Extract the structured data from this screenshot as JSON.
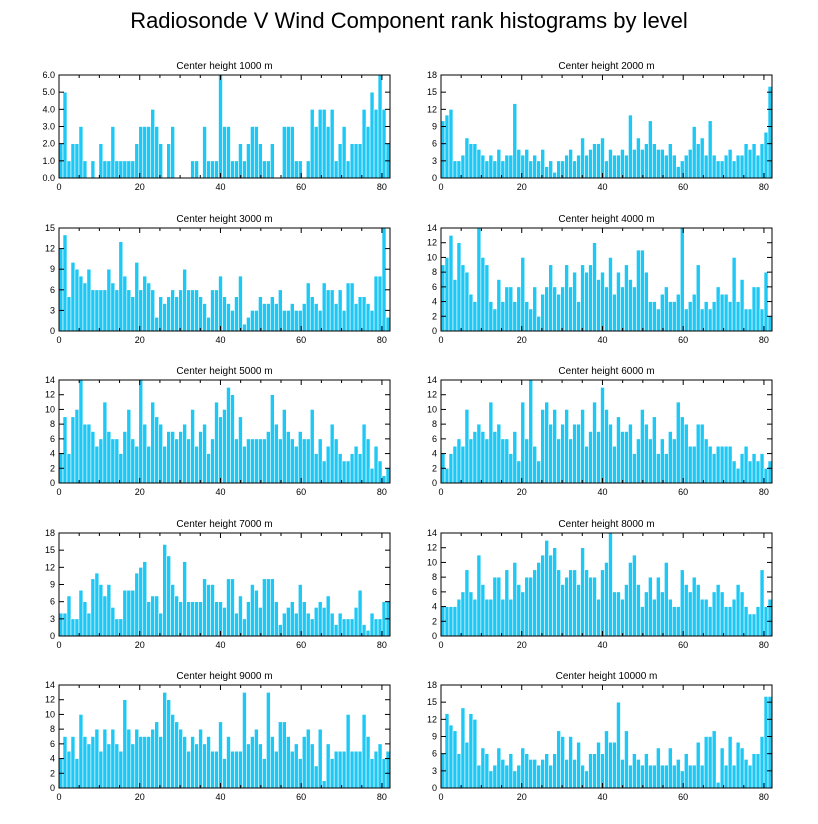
{
  "title": "Radiosonde V Wind Component rank histograms by level",
  "colors": {
    "bar": "#1ec8f5",
    "bar_edge": "#ffffff",
    "axis": "#000000"
  },
  "chart_data": [
    {
      "type": "bar",
      "title": "Center height 1000 m",
      "xlim": [
        0,
        82
      ],
      "ylim": [
        0,
        6
      ],
      "xticks": [
        0,
        20,
        40,
        60,
        80
      ],
      "yticks": [
        0,
        1,
        2,
        3,
        4,
        5,
        6
      ],
      "ytick_labels": [
        "0.0",
        "1.0",
        "2.0",
        "3.0",
        "4.0",
        "5.0",
        "6.0"
      ],
      "values": [
        2,
        5,
        1,
        2,
        2,
        3,
        1,
        0,
        1,
        0,
        2,
        1,
        1,
        3,
        1,
        1,
        1,
        1,
        1,
        2,
        3,
        3,
        3,
        4,
        3,
        2,
        0,
        2,
        3,
        0,
        0,
        0,
        0,
        1,
        1,
        0,
        3,
        1,
        1,
        1,
        6,
        3,
        3,
        1,
        1,
        2,
        1,
        2,
        3,
        3,
        2,
        1,
        1,
        2,
        0,
        0,
        3,
        3,
        3,
        1,
        1,
        0,
        1,
        4,
        3,
        4,
        4,
        3,
        4,
        1,
        2,
        3,
        1,
        2,
        2,
        2,
        4,
        3,
        5,
        4,
        6,
        4,
        2
      ]
    },
    {
      "type": "bar",
      "title": "Center height 2000 m",
      "xlim": [
        0,
        82
      ],
      "ylim": [
        0,
        18
      ],
      "xticks": [
        0,
        20,
        40,
        60,
        80
      ],
      "yticks": [
        0,
        3,
        6,
        9,
        12,
        15,
        18
      ],
      "ytick_labels": [
        "0",
        "3",
        "6",
        "9",
        "12",
        "15",
        "18"
      ],
      "values": [
        10,
        11,
        12,
        3,
        3,
        4,
        7,
        6,
        6,
        5,
        4,
        3,
        4,
        3,
        5,
        3,
        4,
        4,
        13,
        5,
        4,
        5,
        3,
        4,
        3,
        5,
        2,
        3,
        1,
        3,
        3,
        4,
        5,
        3,
        4,
        7,
        4,
        5,
        6,
        6,
        7,
        3,
        5,
        4,
        4,
        5,
        4,
        11,
        5,
        7,
        5,
        6,
        10,
        6,
        5,
        5,
        4,
        6,
        4,
        2,
        3,
        4,
        5,
        9,
        6,
        7,
        4,
        10,
        4,
        3,
        3,
        4,
        5,
        3,
        4,
        4,
        6,
        5,
        6,
        4,
        6,
        8,
        16
      ]
    },
    {
      "type": "bar",
      "title": "Center height 3000 m",
      "xlim": [
        0,
        82
      ],
      "ylim": [
        0,
        15
      ],
      "xticks": [
        0,
        20,
        40,
        60,
        80
      ],
      "yticks": [
        0,
        3,
        6,
        9,
        12,
        15
      ],
      "ytick_labels": [
        "0",
        "3",
        "6",
        "9",
        "12",
        "15"
      ],
      "values": [
        12,
        14,
        5,
        10,
        9,
        8,
        7,
        9,
        6,
        6,
        6,
        6,
        9,
        7,
        6,
        13,
        8,
        6,
        5,
        10,
        6,
        8,
        7,
        6,
        2,
        5,
        4,
        5,
        6,
        5,
        6,
        9,
        6,
        6,
        6,
        5,
        4,
        2,
        6,
        6,
        8,
        5,
        4,
        3,
        5,
        8,
        1,
        2,
        3,
        3,
        5,
        4,
        4,
        5,
        4,
        6,
        3,
        3,
        4,
        3,
        3,
        4,
        7,
        5,
        4,
        3,
        7,
        6,
        6,
        4,
        6,
        3,
        7,
        7,
        4,
        5,
        5,
        4,
        3,
        8,
        8,
        15,
        2
      ]
    },
    {
      "type": "bar",
      "title": "Center height 4000 m",
      "xlim": [
        0,
        82
      ],
      "ylim": [
        0,
        14
      ],
      "xticks": [
        0,
        20,
        40,
        60,
        80
      ],
      "yticks": [
        0,
        2,
        4,
        6,
        8,
        10,
        12,
        14
      ],
      "ytick_labels": [
        "0",
        "2",
        "4",
        "6",
        "8",
        "10",
        "12",
        "14"
      ],
      "values": [
        9,
        10,
        13,
        7,
        12,
        9,
        8,
        5,
        4,
        14,
        10,
        9,
        4,
        3,
        7,
        4,
        6,
        6,
        4,
        6,
        10,
        4,
        3,
        6,
        2,
        5,
        6,
        9,
        6,
        5,
        6,
        9,
        6,
        8,
        4,
        9,
        8,
        9,
        12,
        7,
        8,
        6,
        10,
        5,
        8,
        6,
        9,
        7,
        6,
        11,
        11,
        8,
        4,
        4,
        3,
        5,
        6,
        4,
        4,
        5,
        14,
        3,
        4,
        5,
        9,
        3,
        4,
        3,
        4,
        6,
        5,
        5,
        4,
        10,
        4,
        7,
        3,
        3,
        6,
        6,
        3,
        8,
        2
      ]
    },
    {
      "type": "bar",
      "title": "Center height 5000 m",
      "xlim": [
        0,
        82
      ],
      "ylim": [
        0,
        14
      ],
      "xticks": [
        0,
        20,
        40,
        60,
        80
      ],
      "yticks": [
        0,
        2,
        4,
        6,
        8,
        10,
        12,
        14
      ],
      "ytick_labels": [
        "0",
        "2",
        "4",
        "6",
        "8",
        "10",
        "12",
        "14"
      ],
      "values": [
        4,
        9,
        4,
        9,
        10,
        14,
        8,
        8,
        7,
        5,
        6,
        11,
        7,
        6,
        6,
        4,
        7,
        10,
        6,
        5,
        14,
        8,
        5,
        11,
        9,
        8,
        5,
        7,
        7,
        6,
        7,
        8,
        6,
        10,
        5,
        7,
        8,
        4,
        6,
        11,
        9,
        10,
        13,
        12,
        6,
        9,
        5,
        6,
        6,
        6,
        6,
        6,
        7,
        12,
        8,
        6,
        10,
        7,
        6,
        5,
        7,
        6,
        6,
        10,
        4,
        6,
        3,
        5,
        8,
        6,
        4,
        3,
        3,
        4,
        5,
        4,
        8,
        6,
        2,
        5,
        3,
        1,
        2
      ]
    },
    {
      "type": "bar",
      "title": "Center height 6000 m",
      "xlim": [
        0,
        82
      ],
      "ylim": [
        0,
        14
      ],
      "xticks": [
        0,
        20,
        40,
        60,
        80
      ],
      "yticks": [
        0,
        2,
        4,
        6,
        8,
        10,
        12,
        14
      ],
      "ytick_labels": [
        "0",
        "2",
        "4",
        "6",
        "8",
        "10",
        "12",
        "14"
      ],
      "values": [
        4,
        2,
        4,
        5,
        6,
        5,
        10,
        6,
        7,
        8,
        7,
        6,
        11,
        7,
        8,
        6,
        6,
        4,
        7,
        3,
        11,
        6,
        14,
        5,
        3,
        10,
        11,
        8,
        10,
        6,
        8,
        10,
        6,
        8,
        8,
        10,
        5,
        7,
        11,
        7,
        13,
        10,
        8,
        5,
        9,
        7,
        7,
        8,
        4,
        6,
        10,
        8,
        6,
        9,
        4,
        6,
        4,
        7,
        6,
        11,
        9,
        8,
        5,
        5,
        8,
        8,
        6,
        5,
        4,
        5,
        5,
        5,
        5,
        3,
        2,
        4,
        5,
        3,
        4,
        3,
        4,
        2,
        3
      ]
    },
    {
      "type": "bar",
      "title": "Center height 7000 m",
      "xlim": [
        0,
        82
      ],
      "ylim": [
        0,
        18
      ],
      "xticks": [
        0,
        20,
        40,
        60,
        80
      ],
      "yticks": [
        0,
        3,
        6,
        9,
        12,
        15,
        18
      ],
      "ytick_labels": [
        "0",
        "3",
        "6",
        "9",
        "12",
        "15",
        "18"
      ],
      "values": [
        4,
        4,
        7,
        3,
        3,
        8,
        6,
        4,
        10,
        11,
        9,
        7,
        9,
        5,
        3,
        3,
        8,
        8,
        8,
        11,
        12,
        13,
        6,
        7,
        7,
        4,
        16,
        14,
        9,
        7,
        6,
        13,
        6,
        6,
        6,
        6,
        10,
        9,
        9,
        6,
        6,
        5,
        10,
        10,
        4,
        7,
        3,
        6,
        9,
        8,
        5,
        10,
        10,
        10,
        6,
        2,
        4,
        5,
        6,
        4,
        9,
        6,
        4,
        3,
        5,
        6,
        5,
        7,
        4,
        2,
        4,
        3,
        3,
        3,
        5,
        8,
        2,
        1,
        4,
        3,
        3,
        6,
        6
      ]
    },
    {
      "type": "bar",
      "title": "Center height 8000 m",
      "xlim": [
        0,
        82
      ],
      "ylim": [
        0,
        14
      ],
      "xticks": [
        0,
        20,
        40,
        60,
        80
      ],
      "yticks": [
        0,
        2,
        4,
        6,
        8,
        10,
        12,
        14
      ],
      "ytick_labels": [
        "0",
        "2",
        "4",
        "6",
        "8",
        "10",
        "12",
        "14"
      ],
      "values": [
        4,
        4,
        4,
        4,
        5,
        6,
        9,
        6,
        5,
        11,
        7,
        5,
        5,
        8,
        8,
        5,
        9,
        5,
        10,
        7,
        6,
        8,
        8,
        9,
        10,
        11,
        13,
        11,
        12,
        9,
        7,
        8,
        9,
        9,
        7,
        12,
        9,
        8,
        8,
        5,
        9,
        10,
        14,
        6,
        6,
        5,
        7,
        10,
        11,
        7,
        4,
        6,
        8,
        5,
        8,
        6,
        10,
        5,
        4,
        4,
        9,
        7,
        6,
        8,
        7,
        5,
        5,
        4,
        6,
        7,
        6,
        4,
        4,
        5,
        7,
        6,
        4,
        3,
        3,
        4,
        9,
        4,
        5
      ]
    },
    {
      "type": "bar",
      "title": "Center height 9000 m",
      "xlim": [
        0,
        82
      ],
      "ylim": [
        0,
        14
      ],
      "xticks": [
        0,
        20,
        40,
        60,
        80
      ],
      "yticks": [
        0,
        2,
        4,
        6,
        8,
        10,
        12,
        14
      ],
      "ytick_labels": [
        "0",
        "2",
        "4",
        "6",
        "8",
        "10",
        "12",
        "14"
      ],
      "values": [
        4,
        7,
        5,
        7,
        4,
        10,
        7,
        6,
        7,
        8,
        5,
        8,
        6,
        8,
        6,
        5,
        12,
        8,
        6,
        8,
        7,
        7,
        7,
        8,
        9,
        7,
        13,
        12,
        10,
        9,
        8,
        7,
        5,
        7,
        6,
        8,
        6,
        7,
        5,
        5,
        9,
        4,
        7,
        5,
        5,
        5,
        13,
        6,
        7,
        8,
        6,
        4,
        13,
        7,
        5,
        9,
        9,
        7,
        5,
        6,
        4,
        7,
        8,
        6,
        3,
        8,
        1,
        6,
        4,
        5,
        5,
        5,
        10,
        5,
        5,
        5,
        10,
        7,
        4,
        5,
        6,
        4,
        5
      ]
    },
    {
      "type": "bar",
      "title": "Center height 10000 m",
      "xlim": [
        0,
        82
      ],
      "ylim": [
        0,
        18
      ],
      "xticks": [
        0,
        20,
        40,
        60,
        80
      ],
      "yticks": [
        0,
        3,
        6,
        9,
        12,
        15,
        18
      ],
      "ytick_labels": [
        "0",
        "3",
        "6",
        "9",
        "12",
        "15",
        "18"
      ],
      "values": [
        6,
        13,
        11,
        10,
        6,
        14,
        8,
        13,
        12,
        4,
        7,
        6,
        3,
        4,
        7,
        5,
        4,
        6,
        3,
        4,
        7,
        6,
        5,
        5,
        4,
        5,
        6,
        4,
        6,
        10,
        9,
        5,
        9,
        5,
        8,
        4,
        3,
        6,
        6,
        8,
        6,
        10,
        8,
        8,
        15,
        5,
        10,
        4,
        6,
        5,
        4,
        6,
        4,
        4,
        7,
        4,
        4,
        7,
        4,
        5,
        3,
        6,
        4,
        4,
        8,
        4,
        9,
        9,
        10,
        1,
        7,
        4,
        9,
        4,
        8,
        7,
        5,
        4,
        6,
        6,
        9,
        16,
        16
      ]
    }
  ]
}
